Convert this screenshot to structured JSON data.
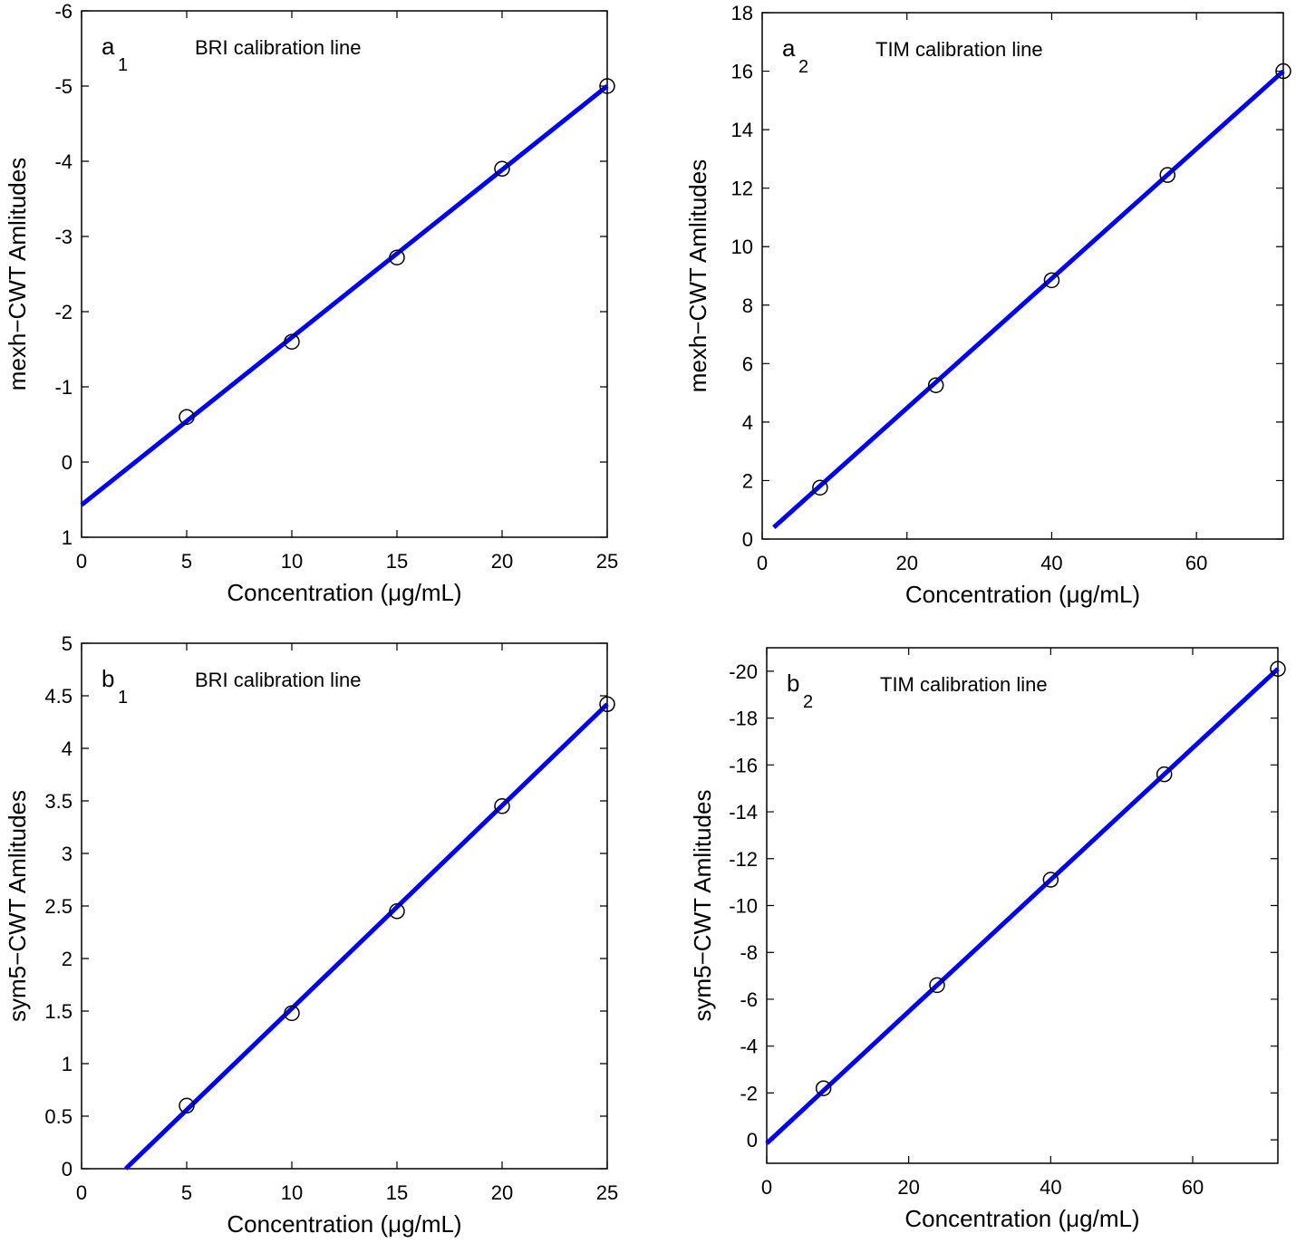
{
  "chart_data": [
    {
      "type": "scatter",
      "panel_label": "a",
      "panel_subscript": "1",
      "title": "BRI calibration line",
      "xlabel": "Concentration (μg/mL)",
      "ylabel": "mexh−CWT Amlitudes",
      "xlim": [
        0,
        25
      ],
      "xticks": [
        0,
        5,
        10,
        15,
        20,
        25
      ],
      "ylim": [
        -6,
        1
      ],
      "yticks": [
        -6,
        -5,
        -4,
        -3,
        -2,
        -1,
        0,
        1
      ],
      "yreverse": true,
      "points": {
        "color": "#000000",
        "x": [
          5,
          10,
          15,
          20,
          25
        ],
        "y": [
          -0.6,
          -1.6,
          -2.72,
          -3.9,
          -5.0
        ]
      },
      "fit": {
        "color": "#0000ff",
        "x": [
          0,
          25
        ],
        "y": [
          0.57,
          -5.0
        ]
      }
    },
    {
      "type": "scatter",
      "panel_label": "a",
      "panel_subscript": "2",
      "title": "TIM calibration line",
      "xlabel": "Concentration (μg/mL)",
      "ylabel": "mexh−CWT Amlitudes",
      "xlim": [
        0,
        72
      ],
      "xticks": [
        0,
        20,
        40,
        60
      ],
      "ylim": [
        0,
        18
      ],
      "yticks": [
        0,
        2,
        4,
        6,
        8,
        10,
        12,
        14,
        16,
        18
      ],
      "yreverse": false,
      "points": {
        "color": "#000000",
        "x": [
          8,
          24,
          40,
          56,
          72
        ],
        "y": [
          1.76,
          5.26,
          8.85,
          12.45,
          16.0
        ]
      },
      "fit": {
        "color": "#0000ff",
        "x": [
          1.6,
          72
        ],
        "y": [
          0.4,
          16.0
        ]
      }
    },
    {
      "type": "scatter",
      "panel_label": "b",
      "panel_subscript": "1",
      "title": "BRI calibration line",
      "xlabel": "Concentration (μg/mL)",
      "ylabel": "sym5−CWT Amlitudes",
      "xlim": [
        0,
        25
      ],
      "xticks": [
        0,
        5,
        10,
        15,
        20,
        25
      ],
      "ylim": [
        0,
        5
      ],
      "yticks": [
        0,
        0.5,
        1,
        1.5,
        2,
        2.5,
        3,
        3.5,
        4,
        4.5,
        5
      ],
      "yreverse": false,
      "points": {
        "color": "#000000",
        "x": [
          5,
          10,
          15,
          20,
          25
        ],
        "y": [
          0.6,
          1.48,
          2.45,
          3.45,
          4.42
        ]
      },
      "fit": {
        "color": "#0000ff",
        "x": [
          2.1,
          25
        ],
        "y": [
          0,
          4.42
        ]
      }
    },
    {
      "type": "scatter",
      "panel_label": "b",
      "panel_subscript": "2",
      "title": "TIM calibration line",
      "xlabel": "Concentration (μg/mL)",
      "ylabel": "sym5−CWT Amlitudes",
      "xlim": [
        0,
        72
      ],
      "xticks": [
        0,
        20,
        40,
        60
      ],
      "ylim": [
        -21,
        1
      ],
      "yticks": [
        -20,
        -18,
        -16,
        -14,
        -12,
        -10,
        -8,
        -6,
        -4,
        -2,
        0
      ],
      "yreverse": true,
      "points": {
        "color": "#000000",
        "x": [
          8,
          24,
          40,
          56,
          72
        ],
        "y": [
          -2.2,
          -6.6,
          -11.1,
          -15.6,
          -20.1
        ]
      },
      "fit": {
        "color": "#0000ff",
        "x": [
          0,
          72
        ],
        "y": [
          0.15,
          -20.1
        ]
      }
    }
  ]
}
